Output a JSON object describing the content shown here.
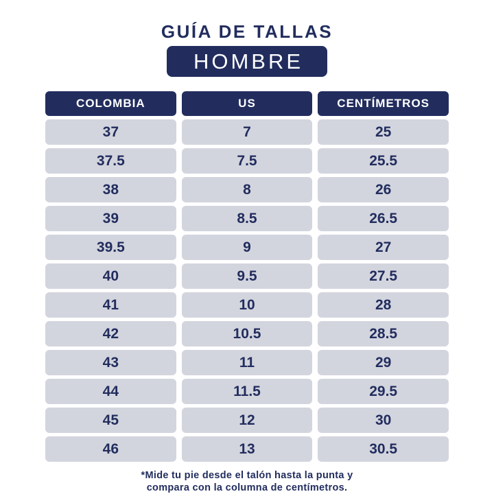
{
  "page": {
    "title": "GUÍA DE TALLAS",
    "badge": "HOMBRE"
  },
  "colors": {
    "navy": "#222D5E",
    "row_bg": "#D3D5DE",
    "background": "#FFFFFF",
    "header_text": "#FFFFFF"
  },
  "table": {
    "columns": [
      "COLOMBIA",
      "US",
      "CENTÍMETROS"
    ],
    "rows": [
      [
        "37",
        "7",
        "25"
      ],
      [
        "37.5",
        "7.5",
        "25.5"
      ],
      [
        "38",
        "8",
        "26"
      ],
      [
        "39",
        "8.5",
        "26.5"
      ],
      [
        "39.5",
        "9",
        "27"
      ],
      [
        "40",
        "9.5",
        "27.5"
      ],
      [
        "41",
        "10",
        "28"
      ],
      [
        "42",
        "10.5",
        "28.5"
      ],
      [
        "43",
        "11",
        "29"
      ],
      [
        "44",
        "11.5",
        "29.5"
      ],
      [
        "45",
        "12",
        "30"
      ],
      [
        "46",
        "13",
        "30.5"
      ]
    ]
  },
  "footer": {
    "line1": "*Mide tu pie desde el talón hasta la punta y",
    "line2": "compara con la columna de centímetros."
  },
  "chart_data": {
    "type": "table",
    "title": "GUÍA DE TALLAS",
    "subtitle": "HOMBRE",
    "columns": [
      "COLOMBIA",
      "US",
      "CENTÍMETROS"
    ],
    "rows": [
      [
        "37",
        "7",
        "25"
      ],
      [
        "37.5",
        "7.5",
        "25.5"
      ],
      [
        "38",
        "8",
        "26"
      ],
      [
        "39",
        "8.5",
        "26.5"
      ],
      [
        "39.5",
        "9",
        "27"
      ],
      [
        "40",
        "9.5",
        "27.5"
      ],
      [
        "41",
        "10",
        "28"
      ],
      [
        "42",
        "10.5",
        "28.5"
      ],
      [
        "43",
        "11",
        "29"
      ],
      [
        "44",
        "11.5",
        "29.5"
      ],
      [
        "45",
        "12",
        "30"
      ],
      [
        "46",
        "13",
        "30.5"
      ]
    ],
    "footnote": "*Mide tu pie desde el talón hasta la punta y compara con la columna de centímetros."
  }
}
